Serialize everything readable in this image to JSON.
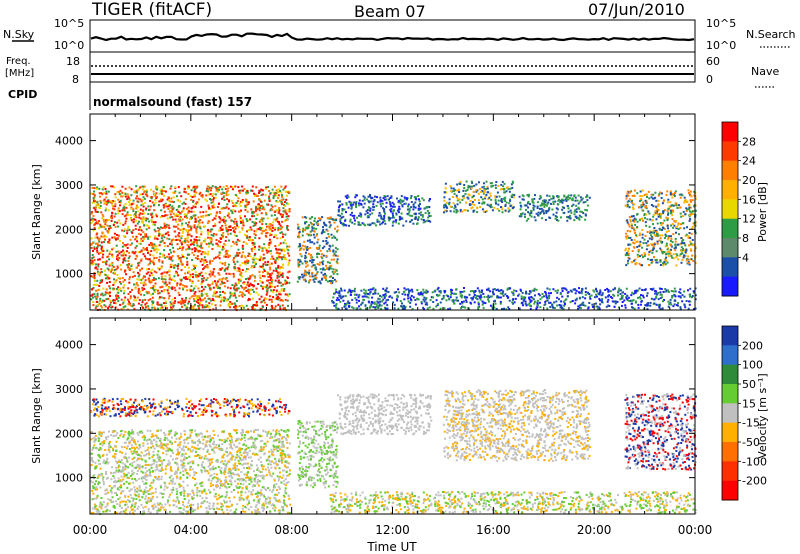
{
  "header": {
    "radar": "TIGER (fitACF)",
    "beam": "Beam 07",
    "date": "07/Jun/2010"
  },
  "top_panels": {
    "nsky_label": "N.Sky",
    "nsearch_label": "N.Search",
    "left_ticks": [
      "10^5",
      "10^0"
    ],
    "right_ticks": [
      "10^5",
      "10^0"
    ],
    "freq_label": "Freq.",
    "freq_unit": "[MHz]",
    "freq_ticks": [
      "18",
      "8"
    ],
    "nave_label": "Nave",
    "nave_ticks": [
      "60",
      "0"
    ],
    "cpid_label": "CPID",
    "cpid_value": "normalsound (fast) 157"
  },
  "chart_data": [
    {
      "type": "heatmap",
      "name": "power",
      "ylabel": "Slant Range [km]",
      "xlabel": "Time UT",
      "x_ticks": [
        "00:00",
        "04:00",
        "08:00",
        "12:00",
        "16:00",
        "20:00",
        "00:00"
      ],
      "x_hours": [
        0,
        4,
        8,
        12,
        16,
        20,
        24
      ],
      "y_ticks": [
        1000,
        2000,
        3000,
        4000
      ],
      "ylim": [
        180,
        4600
      ],
      "colorbar_label": "Power [dB]",
      "colorbar_ticks": [
        "28",
        "24",
        "20",
        "16",
        "12",
        "8",
        "4"
      ],
      "colorbar_colors": [
        "#ff0000",
        "#ff3a00",
        "#ff8000",
        "#ffb000",
        "#e8d800",
        "#2e9b45",
        "#5d8a6a",
        "#1c50a8",
        "#1a1aff"
      ],
      "blobs": [
        {
          "t0": 0.0,
          "t1": 7.9,
          "r0": 200,
          "r1": 3000,
          "colors": [
            "#ff3a00",
            "#ff0000",
            "#ff8000",
            "#e8d800",
            "#2e9b45"
          ]
        },
        {
          "t0": 8.2,
          "t1": 9.8,
          "r0": 800,
          "r1": 2300,
          "colors": [
            "#1c50a8",
            "#2e9b45",
            "#ff8000"
          ]
        },
        {
          "t0": 9.8,
          "t1": 13.5,
          "r0": 2100,
          "r1": 2800,
          "colors": [
            "#1c50a8",
            "#2e9b45",
            "#1a1aff"
          ]
        },
        {
          "t0": 14.0,
          "t1": 16.8,
          "r0": 2400,
          "r1": 3100,
          "colors": [
            "#1c50a8",
            "#2e9b45",
            "#ffb000"
          ]
        },
        {
          "t0": 17.0,
          "t1": 19.8,
          "r0": 2200,
          "r1": 2800,
          "colors": [
            "#1c50a8",
            "#2e9b45"
          ]
        },
        {
          "t0": 21.2,
          "t1": 24.0,
          "r0": 1200,
          "r1": 2900,
          "colors": [
            "#ff8000",
            "#2e9b45",
            "#ffb000",
            "#1c50a8"
          ]
        },
        {
          "t0": 9.5,
          "t1": 24.0,
          "r0": 220,
          "r1": 700,
          "colors": [
            "#1c50a8",
            "#1a1aff",
            "#2e9b45"
          ]
        }
      ]
    },
    {
      "type": "heatmap",
      "name": "velocity",
      "ylabel": "Slant Range [km]",
      "xlabel": "Time UT",
      "x_ticks": [
        "00:00",
        "04:00",
        "08:00",
        "12:00",
        "16:00",
        "20:00",
        "00:00"
      ],
      "x_hours": [
        0,
        4,
        8,
        12,
        16,
        20,
        24
      ],
      "y_ticks": [
        1000,
        2000,
        3000,
        4000
      ],
      "ylim": [
        180,
        4600
      ],
      "colorbar_label": "Velocity [m s⁻¹]",
      "colorbar_ticks": [
        "200",
        "100",
        "50",
        "15",
        "-15",
        "-50",
        "-100",
        "-200"
      ],
      "colorbar_colors": [
        "#1a3aa8",
        "#2f6fcc",
        "#2e8b3a",
        "#66cc33",
        "#c0c0c0",
        "#ffb000",
        "#ff7000",
        "#ff3000",
        "#ff0000"
      ],
      "blobs": [
        {
          "t0": 0.0,
          "t1": 7.9,
          "r0": 200,
          "r1": 2100,
          "colors": [
            "#c0c0c0",
            "#c0c0c0",
            "#ffb000",
            "#66cc33"
          ]
        },
        {
          "t0": 0.0,
          "t1": 7.9,
          "r0": 2400,
          "r1": 2800,
          "colors": [
            "#ff0000",
            "#1a3aa8",
            "#ffb000"
          ]
        },
        {
          "t0": 8.2,
          "t1": 9.8,
          "r0": 800,
          "r1": 2300,
          "colors": [
            "#c0c0c0",
            "#66cc33"
          ]
        },
        {
          "t0": 9.8,
          "t1": 13.5,
          "r0": 2000,
          "r1": 2900,
          "colors": [
            "#c0c0c0"
          ]
        },
        {
          "t0": 14.0,
          "t1": 19.8,
          "r0": 1400,
          "r1": 3000,
          "colors": [
            "#c0c0c0",
            "#c0c0c0",
            "#ffb000"
          ]
        },
        {
          "t0": 21.2,
          "t1": 24.0,
          "r0": 1200,
          "r1": 2900,
          "colors": [
            "#c0c0c0",
            "#ff0000",
            "#1a3aa8"
          ]
        },
        {
          "t0": 9.5,
          "t1": 24.0,
          "r0": 220,
          "r1": 700,
          "colors": [
            "#66cc33",
            "#ffb000",
            "#c0c0c0"
          ]
        }
      ]
    }
  ]
}
